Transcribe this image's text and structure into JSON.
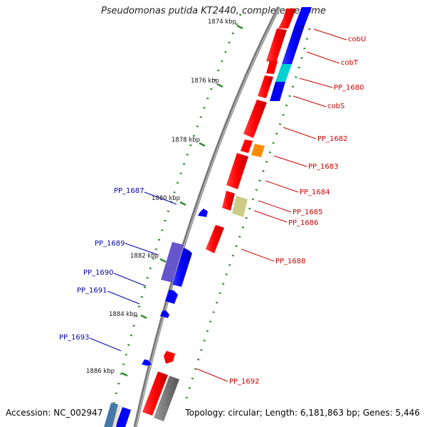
{
  "title": "Pseudomonas putida KT2440, complete genome",
  "footer": {
    "accession": "Accession: NC_002947",
    "summary": "Topology: circular; Length: 6,181,863 bp; Genes: 5,446"
  },
  "colors": {
    "backbone": "#8c8c8c",
    "tick": "#2e8b2e",
    "forward_label": "#cc0000",
    "reverse_label": "#0000aa"
  },
  "scale_labels": [
    "1874 kbp",
    "1876 kbp",
    "1878 kbp",
    "1880 kbp",
    "1882 kbp",
    "1884 kbp",
    "1886 kbp"
  ],
  "genes_right": [
    "cobU",
    "cobT",
    "PP_1680",
    "cobS",
    "PP_1682",
    "PP_1683",
    "PP_1684",
    "PP_1685",
    "PP_1686",
    "PP_1688",
    "PP_1692"
  ],
  "genes_left": [
    "PP_1687",
    "PP_1689",
    "PP_1690",
    "PP_1691",
    "PP_1693"
  ]
}
